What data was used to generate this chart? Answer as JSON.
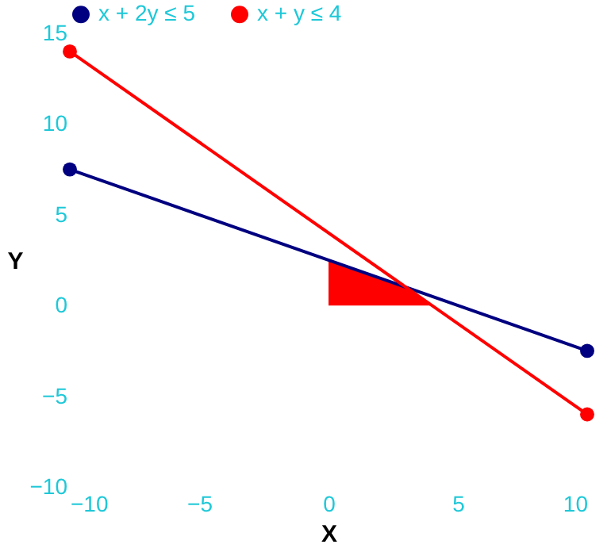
{
  "chart_data": {
    "type": "line",
    "xlabel": "X",
    "ylabel": "Y",
    "xlim": [
      -10,
      10
    ],
    "ylim": [
      -10,
      15
    ],
    "xticks": [
      -10,
      -5,
      0,
      5,
      10
    ],
    "yticks": [
      -10,
      -5,
      0,
      5,
      10,
      15
    ],
    "grid": false,
    "legend": "top",
    "line_style": "solid",
    "series": [
      {
        "name": "x + 2y ≤ 5",
        "color": "#000080",
        "marker": "circle",
        "x": [
          -10,
          10
        ],
        "values": [
          7.5,
          -2.5
        ]
      },
      {
        "name": "x + y ≤ 4",
        "color": "#ff0000",
        "marker": "circle",
        "x": [
          -10,
          10
        ],
        "values": [
          14,
          -6
        ]
      },
      {
        "type": "area",
        "color": "#ff0000",
        "x": [
          0,
          3,
          4
        ],
        "values": [
          2.5,
          1,
          0
        ]
      }
    ]
  }
}
